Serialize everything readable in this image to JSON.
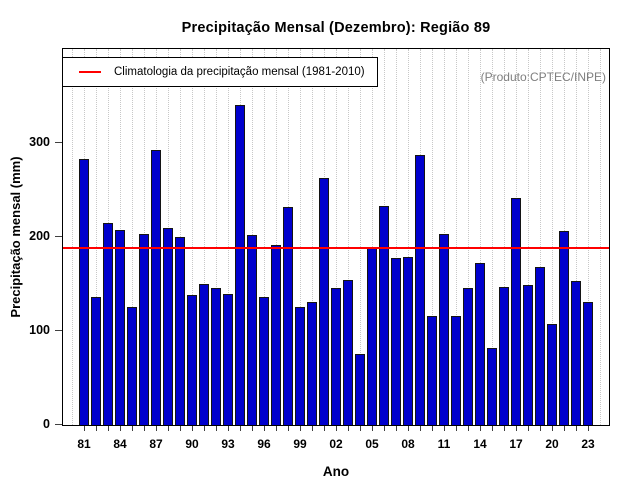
{
  "chart_data": {
    "type": "bar",
    "title": "Precipitação Mensal (Dezembro): Região 89",
    "xlabel": "Ano",
    "ylabel": "Precipitação mensal (mm)",
    "legend": {
      "label": "Climatologia da precipitação mensal (1981-2010)",
      "position": "top-left",
      "marker": "red-line"
    },
    "annotation": "(Produto:CPTEC/INPE)",
    "x": [
      1981,
      1982,
      1983,
      1984,
      1985,
      1986,
      1987,
      1988,
      1989,
      1990,
      1991,
      1992,
      1993,
      1994,
      1995,
      1996,
      1997,
      1998,
      1999,
      2000,
      2001,
      2002,
      2003,
      2004,
      2005,
      2006,
      2007,
      2008,
      2009,
      2010,
      2011,
      2012,
      2013,
      2014,
      2015,
      2016,
      2017,
      2018,
      2019,
      2020,
      2021,
      2022,
      2023
    ],
    "values": [
      283,
      136,
      215,
      207,
      126,
      203,
      293,
      210,
      200,
      138,
      150,
      146,
      139,
      340,
      202,
      136,
      191,
      232,
      126,
      131,
      263,
      146,
      154,
      75,
      189,
      233,
      178,
      179,
      287,
      116,
      203,
      116,
      146,
      172,
      82,
      147,
      242,
      149,
      168,
      107,
      206,
      153,
      131
    ],
    "climatology": 188,
    "ylim": [
      0,
      400
    ],
    "yticks": [
      0,
      100,
      200,
      300
    ],
    "xtick_step": 3,
    "xtick_labels": [
      "81",
      "84",
      "87",
      "90",
      "93",
      "96",
      "99",
      "02",
      "05",
      "08",
      "11",
      "14",
      "17",
      "20",
      "23"
    ],
    "grid": {
      "vertical": "dotted-every-year",
      "horizontal": "none",
      "extra_years": [
        1980,
        2024
      ]
    },
    "colors": {
      "bar_fill": "#0000CD",
      "bar_border": "#141414",
      "climatology_line": "#FF0000",
      "gridline": "#C8C8C8",
      "annotation_text": "#7F7F7F",
      "axis": "#000000",
      "background": "#FFFFFF"
    }
  }
}
